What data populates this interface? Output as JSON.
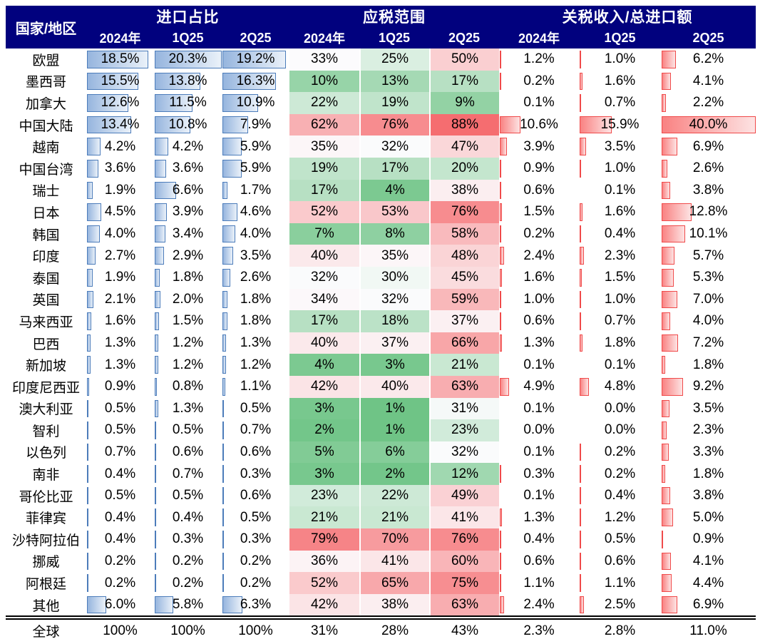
{
  "colors": {
    "header_bg": "#01017E",
    "header_text": "#FFFFFF",
    "blue_bar_border": "#4C7CBA",
    "blue_bar_fill_start": "#96B5DE",
    "blue_bar_fill_end": "#EAF1F9",
    "red_bar_border": "#F04A4A",
    "red_bar_fill_start": "#F98282",
    "red_bar_fill_end": "#FDE3E3",
    "heat_green": "#6FC486",
    "heat_white": "#FCFCFE",
    "heat_red": "#F56D70",
    "text": "#000000",
    "divider": "#000000"
  },
  "chart_data": {
    "type": "heatmap",
    "country_header": "国家/地区",
    "groups": [
      {
        "label": "进口占比",
        "cols": [
          "2024年",
          "1Q25",
          "2Q25"
        ],
        "style": "blue-databar"
      },
      {
        "label": "应税范围",
        "cols": [
          "2024年",
          "1Q25",
          "2Q25"
        ],
        "style": "green-red-colorscale"
      },
      {
        "label": "关税收入/总进口额",
        "cols": [
          "2024年",
          "1Q25",
          "2Q25"
        ],
        "style": "red-databar"
      }
    ],
    "value_suffix": "%",
    "bar_scales": {
      "import_share_max": 20.3,
      "tariff_max": 40.0
    },
    "rows": [
      {
        "name": "欧盟",
        "import_share": [
          18.5,
          20.3,
          19.2
        ],
        "taxable_scope": [
          33,
          25,
          50
        ],
        "tariff_to_imports": [
          1.2,
          1.0,
          6.2
        ]
      },
      {
        "name": "墨西哥",
        "import_share": [
          15.5,
          13.8,
          16.3
        ],
        "taxable_scope": [
          10,
          13,
          17
        ],
        "tariff_to_imports": [
          0.2,
          1.6,
          4.1
        ]
      },
      {
        "name": "加拿大",
        "import_share": [
          12.6,
          11.5,
          10.9
        ],
        "taxable_scope": [
          22,
          19,
          9
        ],
        "tariff_to_imports": [
          0.1,
          0.7,
          2.2
        ]
      },
      {
        "name": "中国大陆",
        "import_share": [
          13.4,
          10.8,
          7.9
        ],
        "taxable_scope": [
          62,
          76,
          88
        ],
        "tariff_to_imports": [
          10.6,
          15.9,
          40.0
        ]
      },
      {
        "name": "越南",
        "import_share": [
          4.2,
          4.2,
          5.9
        ],
        "taxable_scope": [
          35,
          32,
          47
        ],
        "tariff_to_imports": [
          3.9,
          3.5,
          6.9
        ]
      },
      {
        "name": "中国台湾",
        "import_share": [
          3.6,
          3.6,
          5.9
        ],
        "taxable_scope": [
          19,
          17,
          20
        ],
        "tariff_to_imports": [
          0.9,
          1.0,
          2.6
        ]
      },
      {
        "name": "瑞士",
        "import_share": [
          1.9,
          6.6,
          1.7
        ],
        "taxable_scope": [
          17,
          4,
          38
        ],
        "tariff_to_imports": [
          0.6,
          0.1,
          3.8
        ]
      },
      {
        "name": "日本",
        "import_share": [
          4.5,
          3.9,
          4.6
        ],
        "taxable_scope": [
          52,
          53,
          76
        ],
        "tariff_to_imports": [
          1.5,
          1.6,
          12.8
        ]
      },
      {
        "name": "韩国",
        "import_share": [
          4.0,
          3.4,
          4.0
        ],
        "taxable_scope": [
          7,
          8,
          58
        ],
        "tariff_to_imports": [
          0.2,
          0.4,
          10.1
        ]
      },
      {
        "name": "印度",
        "import_share": [
          2.7,
          2.9,
          3.5
        ],
        "taxable_scope": [
          40,
          35,
          48
        ],
        "tariff_to_imports": [
          2.4,
          2.3,
          5.7
        ]
      },
      {
        "name": "泰国",
        "import_share": [
          1.9,
          1.8,
          2.6
        ],
        "taxable_scope": [
          32,
          30,
          45
        ],
        "tariff_to_imports": [
          1.6,
          1.5,
          5.3
        ]
      },
      {
        "name": "英国",
        "import_share": [
          2.1,
          2.0,
          1.8
        ],
        "taxable_scope": [
          34,
          32,
          59
        ],
        "tariff_to_imports": [
          1.0,
          1.0,
          7.0
        ]
      },
      {
        "name": "马来西亚",
        "import_share": [
          1.6,
          1.5,
          1.8
        ],
        "taxable_scope": [
          17,
          18,
          37
        ],
        "tariff_to_imports": [
          0.6,
          0.7,
          4.0
        ]
      },
      {
        "name": "巴西",
        "import_share": [
          1.3,
          1.2,
          1.3
        ],
        "taxable_scope": [
          40,
          37,
          66
        ],
        "tariff_to_imports": [
          1.3,
          1.8,
          7.2
        ]
      },
      {
        "name": "新加坡",
        "import_share": [
          1.3,
          1.2,
          1.2
        ],
        "taxable_scope": [
          4,
          3,
          21
        ],
        "tariff_to_imports": [
          0.1,
          0.1,
          1.8
        ]
      },
      {
        "name": "印度尼西亚",
        "import_share": [
          0.9,
          0.8,
          1.1
        ],
        "taxable_scope": [
          42,
          40,
          63
        ],
        "tariff_to_imports": [
          4.9,
          4.8,
          9.2
        ]
      },
      {
        "name": "澳大利亚",
        "import_share": [
          0.5,
          1.3,
          0.5
        ],
        "taxable_scope": [
          3,
          1,
          31
        ],
        "tariff_to_imports": [
          0.1,
          0.0,
          3.5
        ]
      },
      {
        "name": "智利",
        "import_share": [
          0.5,
          0.5,
          0.7
        ],
        "taxable_scope": [
          2,
          1,
          23
        ],
        "tariff_to_imports": [
          0.0,
          0.0,
          2.3
        ]
      },
      {
        "name": "以色列",
        "import_share": [
          0.7,
          0.6,
          0.6
        ],
        "taxable_scope": [
          5,
          6,
          32
        ],
        "tariff_to_imports": [
          0.1,
          0.2,
          3.3
        ]
      },
      {
        "name": "南非",
        "import_share": [
          0.4,
          0.7,
          0.3
        ],
        "taxable_scope": [
          3,
          2,
          12
        ],
        "tariff_to_imports": [
          0.3,
          0.2,
          1.8
        ]
      },
      {
        "name": "哥伦比亚",
        "import_share": [
          0.5,
          0.5,
          0.6
        ],
        "taxable_scope": [
          23,
          22,
          49
        ],
        "tariff_to_imports": [
          0.1,
          0.4,
          3.8
        ]
      },
      {
        "name": "菲律宾",
        "import_share": [
          0.4,
          0.4,
          0.5
        ],
        "taxable_scope": [
          21,
          21,
          41
        ],
        "tariff_to_imports": [
          1.3,
          1.2,
          5.0
        ]
      },
      {
        "name": "沙特阿拉伯",
        "import_share": [
          0.4,
          0.3,
          0.3
        ],
        "taxable_scope": [
          79,
          70,
          76
        ],
        "tariff_to_imports": [
          0.4,
          0.5,
          0.9
        ]
      },
      {
        "name": "挪威",
        "import_share": [
          0.2,
          0.2,
          0.2
        ],
        "taxable_scope": [
          36,
          41,
          60
        ],
        "tariff_to_imports": [
          0.6,
          0.6,
          4.1
        ]
      },
      {
        "name": "阿根廷",
        "import_share": [
          0.2,
          0.2,
          0.2
        ],
        "taxable_scope": [
          52,
          65,
          75
        ],
        "tariff_to_imports": [
          1.1,
          1.1,
          4.4
        ]
      },
      {
        "name": "其他",
        "import_share": [
          6.0,
          5.8,
          6.3
        ],
        "taxable_scope": [
          42,
          38,
          63
        ],
        "tariff_to_imports": [
          2.4,
          2.5,
          6.9
        ]
      }
    ],
    "total": {
      "name": "全球",
      "import_share": [
        100,
        100,
        100
      ],
      "taxable_scope": [
        31,
        28,
        43
      ],
      "tariff_to_imports": [
        2.3,
        2.8,
        11.0
      ]
    }
  }
}
